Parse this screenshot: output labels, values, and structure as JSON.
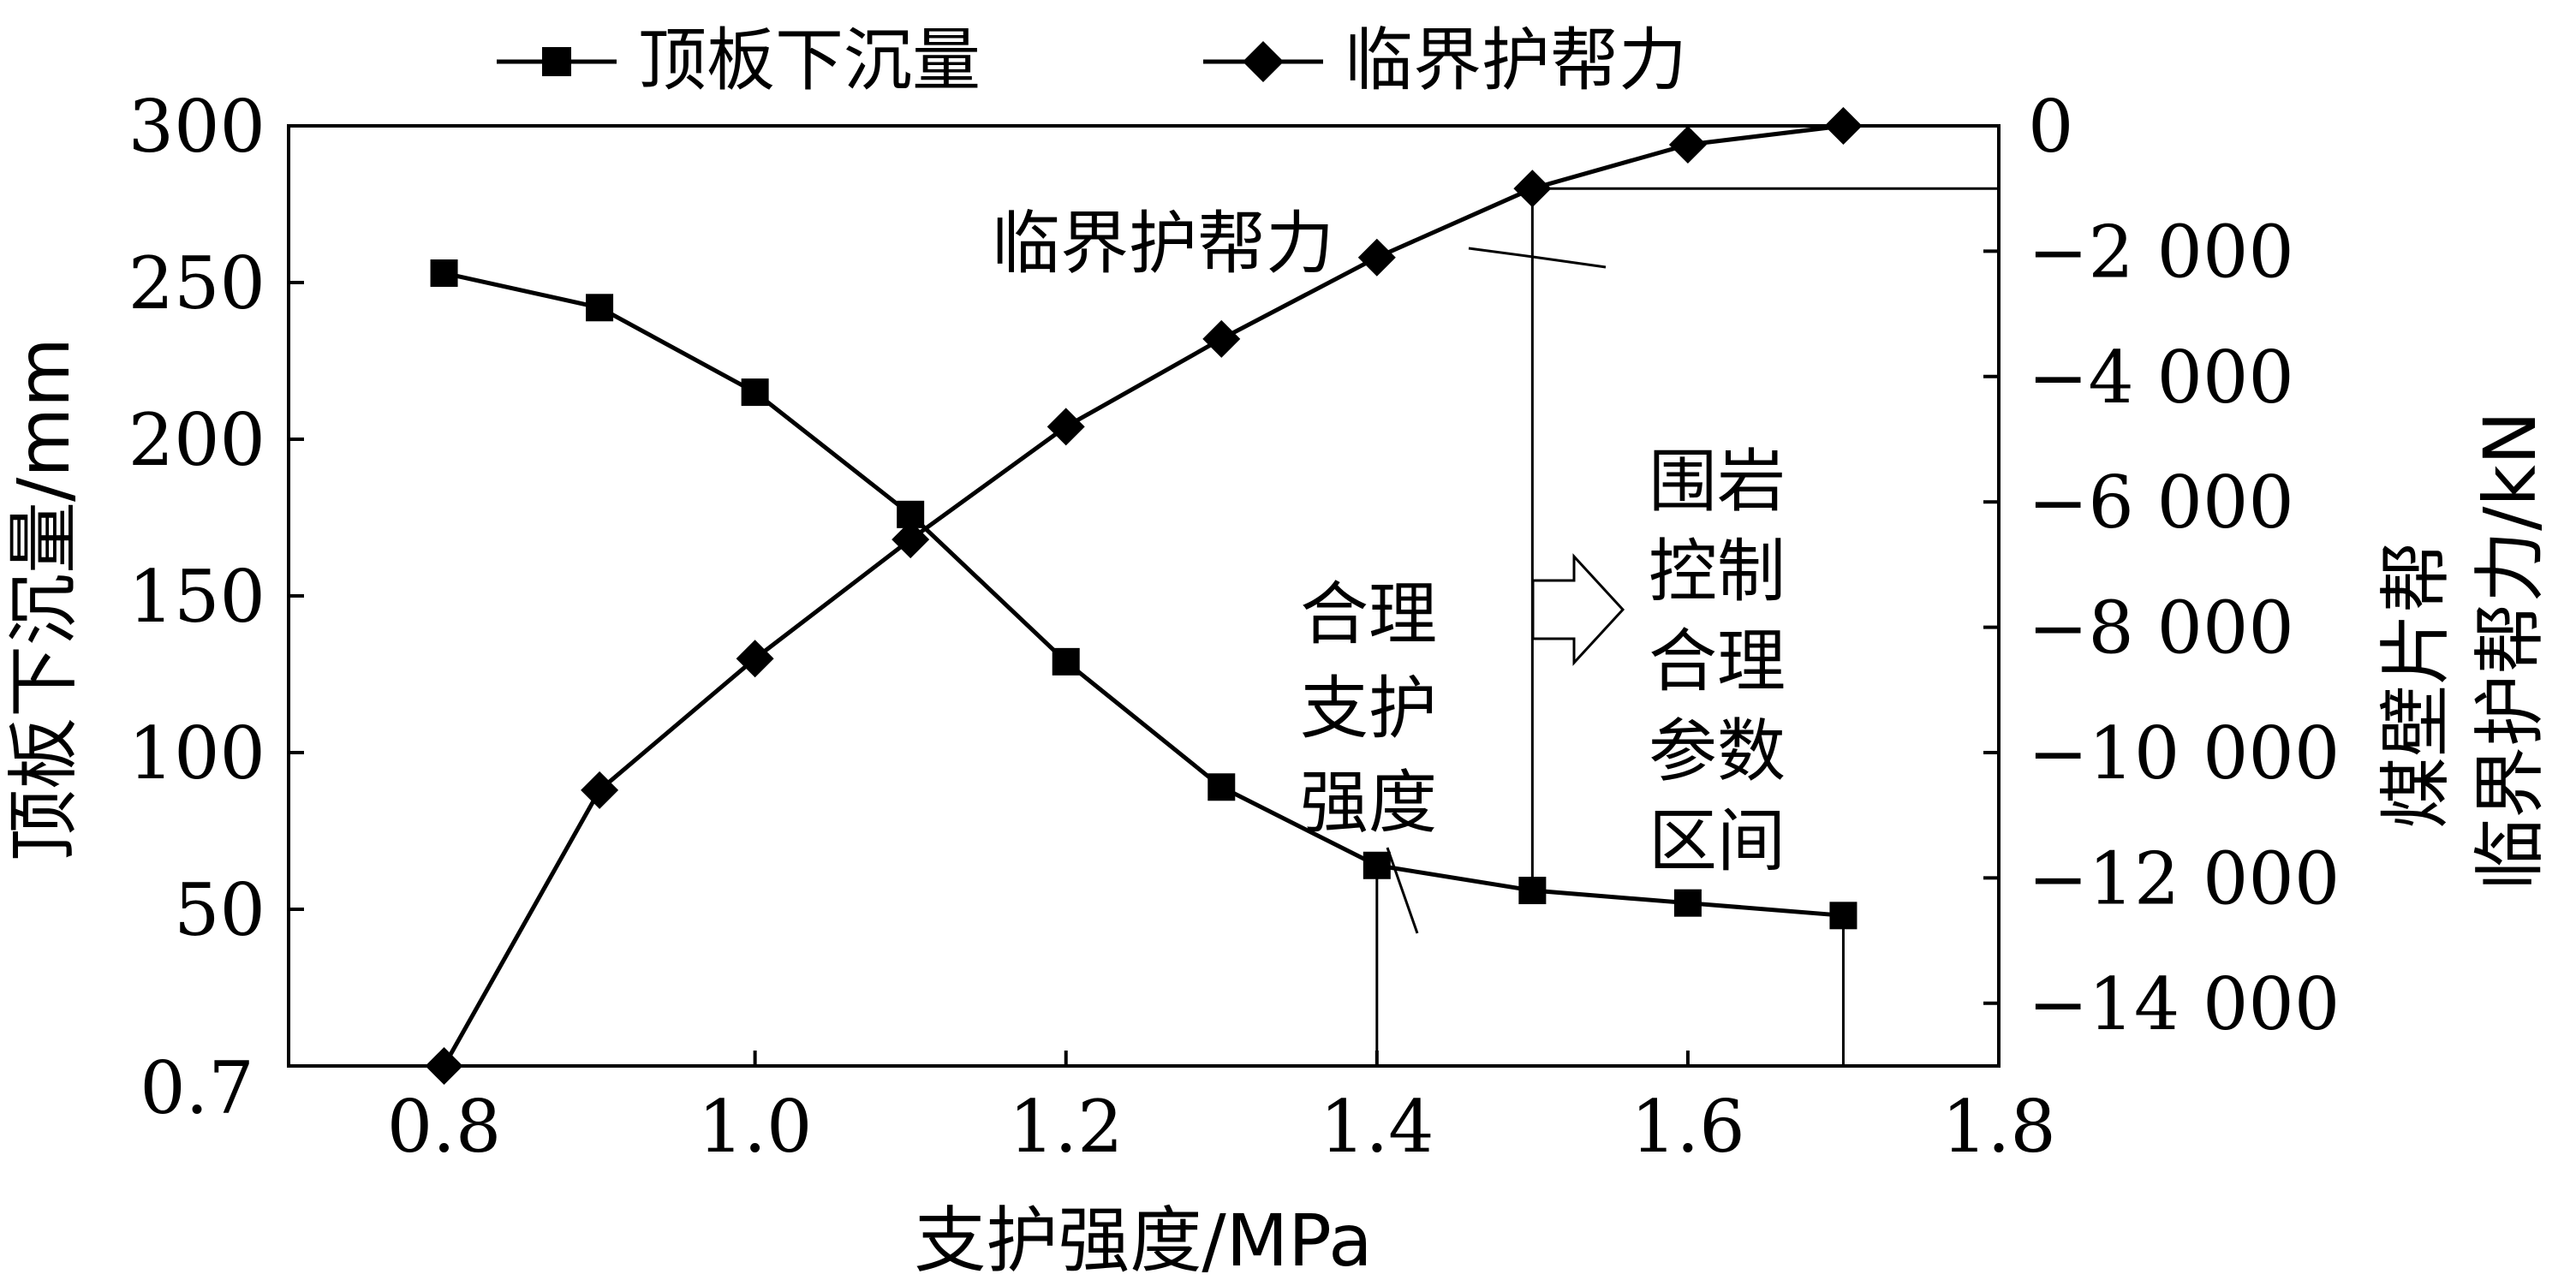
{
  "chart_data": {
    "type": "line",
    "xlabel": "支护强度/MPa",
    "ylabel_left": "顶板下沉量/mm",
    "ylabel_right_line1": "煤壁片帮",
    "ylabel_right_line2": "临界护帮力/kN",
    "xlim": [
      0.7,
      1.8
    ],
    "ylim_left": [
      0,
      300
    ],
    "ylim_right": [
      -15000,
      0
    ],
    "x_ticks": [
      "0.7",
      "0.8",
      "1.0",
      "1.2",
      "1.4",
      "1.6",
      "1.8"
    ],
    "left_ticks": [
      {
        "value": 50,
        "label": "50"
      },
      {
        "value": 100,
        "label": "100"
      },
      {
        "value": 150,
        "label": "150"
      },
      {
        "value": 200,
        "label": "200"
      },
      {
        "value": 250,
        "label": "250"
      },
      {
        "value": 300,
        "label": "300"
      }
    ],
    "right_ticks": [
      {
        "value": 0,
        "label": "0"
      },
      {
        "value": -2000,
        "label": "−2 000"
      },
      {
        "value": -4000,
        "label": "−4 000"
      },
      {
        "value": -6000,
        "label": "−6 000"
      },
      {
        "value": -8000,
        "label": "−8 000"
      },
      {
        "value": -10000,
        "label": "−10 000"
      },
      {
        "value": -12000,
        "label": "−12 000"
      },
      {
        "value": -14000,
        "label": "−14 000"
      }
    ],
    "x": [
      0.8,
      0.9,
      1.0,
      1.1,
      1.2,
      1.3,
      1.4,
      1.5,
      1.6,
      1.7
    ],
    "series": [
      {
        "name": "顶板下沉量",
        "axis": "left",
        "marker": "square",
        "values": [
          253,
          242,
          215,
          176,
          129,
          89,
          64,
          56,
          52,
          48
        ]
      },
      {
        "name": "临界护帮力",
        "axis": "right",
        "marker": "diamond",
        "values": [
          -15000,
          -10600,
          -8500,
          -6600,
          -4800,
          -3400,
          -2100,
          -1000,
          -300,
          0
        ]
      }
    ],
    "legend_position": "top",
    "annotations": {
      "critical_force_label": "临界护帮力",
      "reasonable_strength": [
        "合理",
        "支护",
        "强度"
      ],
      "rock_control_range": [
        "围岩",
        "控制",
        "合理",
        "参数",
        "区间"
      ]
    }
  }
}
